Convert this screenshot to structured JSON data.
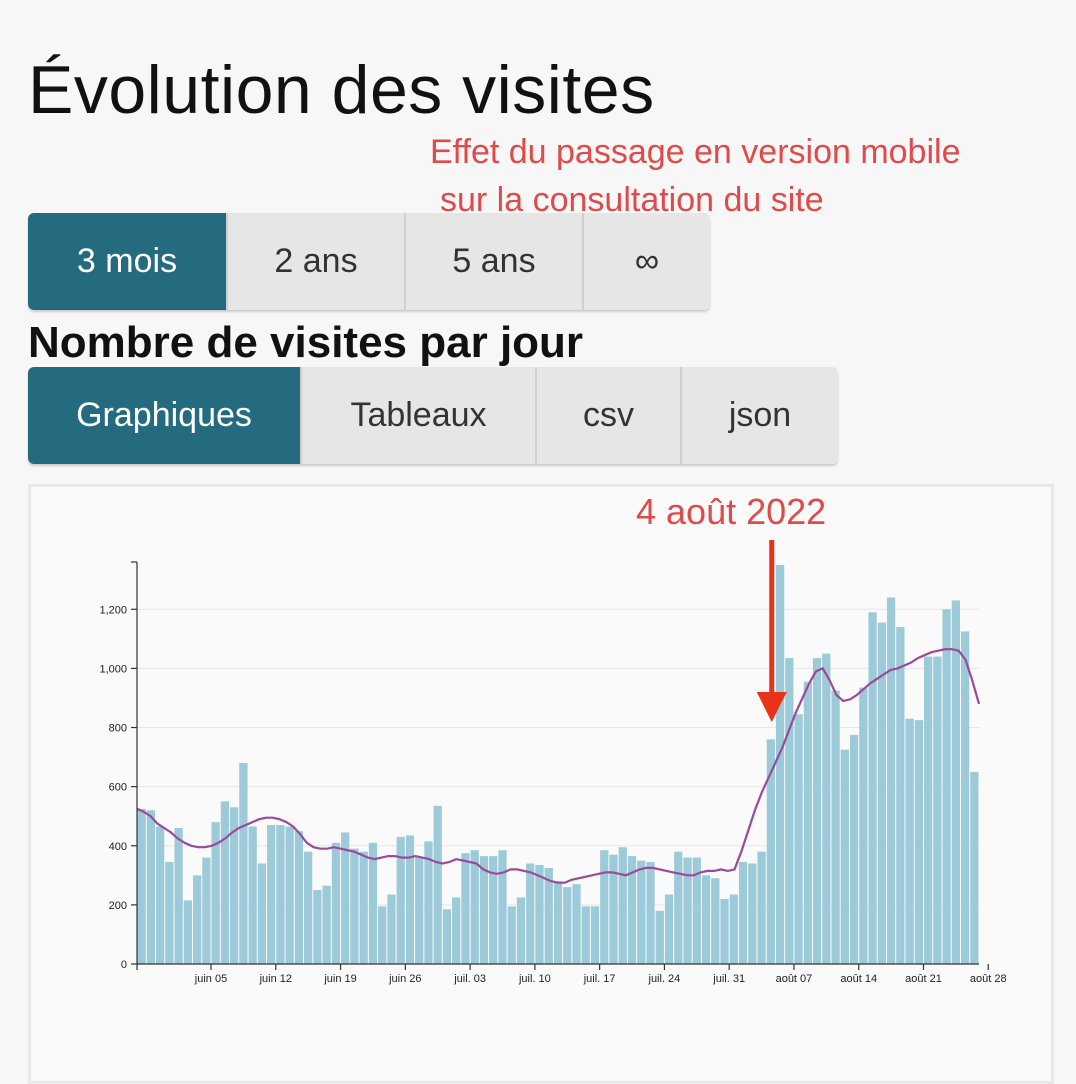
{
  "header": {
    "title": "Évolution des visites",
    "annotation_line1": "Effet du passage en version mobile",
    "annotation_line2": "sur la consultation du site"
  },
  "period_buttons": [
    {
      "label": "3 mois",
      "active": true
    },
    {
      "label": "2 ans",
      "active": false
    },
    {
      "label": "5 ans",
      "active": false
    },
    {
      "label": "∞",
      "active": false
    }
  ],
  "section_title": "Nombre de visites par jour",
  "view_buttons": [
    {
      "label": "Graphiques",
      "active": true
    },
    {
      "label": "Tableaux",
      "active": false
    },
    {
      "label": "csv",
      "active": false
    },
    {
      "label": "json",
      "active": false
    }
  ],
  "chart_annotation": "4 août 2022",
  "colors": {
    "accent": "#256b80",
    "bar": "#9ccad8",
    "trend": "#9a4a9a",
    "annotation": "#e04a4a",
    "arrow": "#e8321a"
  },
  "chart_data": {
    "type": "bar",
    "x_tick_labels": [
      "juin 05",
      "juin 12",
      "juin 19",
      "juin 26",
      "juil. 03",
      "juil. 10",
      "juil. 17",
      "juil. 24",
      "juil. 31",
      "août 07",
      "août 14",
      "août 21",
      "août 28"
    ],
    "y_ticks": [
      0,
      200,
      400,
      600,
      800,
      1000,
      1200
    ],
    "y_tick_labels": [
      "0",
      "200",
      "400",
      "600",
      "800",
      "1,000",
      "1,200"
    ],
    "ylim": [
      0,
      1360
    ],
    "grid": true,
    "annotated_date": "2022-08-04",
    "daily_visits": [
      525,
      520,
      465,
      345,
      460,
      215,
      300,
      360,
      480,
      550,
      530,
      680,
      465,
      340,
      470,
      470,
      465,
      450,
      380,
      250,
      265,
      410,
      445,
      390,
      380,
      410,
      195,
      235,
      430,
      435,
      360,
      415,
      535,
      185,
      225,
      375,
      385,
      365,
      365,
      385,
      195,
      225,
      340,
      335,
      325,
      280,
      260,
      270,
      195,
      195,
      385,
      370,
      395,
      365,
      350,
      345,
      180,
      235,
      380,
      360,
      360,
      300,
      290,
      220,
      235,
      345,
      340,
      380,
      760,
      1350,
      1035,
      845,
      955,
      1035,
      1050,
      925,
      725,
      775,
      935,
      1190,
      1155,
      1240,
      1140,
      830,
      825,
      1040,
      1040,
      1200,
      1230,
      1125,
      650
    ],
    "trend_line": [
      525,
      515,
      500,
      475,
      460,
      445,
      425,
      410,
      400,
      395,
      395,
      400,
      410,
      425,
      445,
      460,
      470,
      480,
      490,
      495,
      495,
      490,
      480,
      465,
      440,
      410,
      395,
      390,
      390,
      395,
      390,
      385,
      380,
      370,
      360,
      355,
      360,
      365,
      365,
      360,
      360,
      365,
      360,
      355,
      345,
      340,
      345,
      355,
      350,
      345,
      340,
      320,
      310,
      305,
      310,
      320,
      320,
      315,
      310,
      300,
      290,
      280,
      275,
      275,
      285,
      290,
      295,
      300,
      305,
      310,
      310,
      305,
      300,
      310,
      320,
      325,
      325,
      320,
      315,
      310,
      305,
      300,
      300,
      310,
      315,
      315,
      320,
      315,
      320,
      380,
      450,
      520,
      580,
      630,
      680,
      730,
      790,
      850,
      900,
      950,
      990,
      1000,
      960,
      910,
      890,
      895,
      910,
      930,
      950,
      965,
      980,
      995,
      1000,
      1010,
      1020,
      1035,
      1045,
      1055,
      1060,
      1065,
      1065,
      1060,
      1030,
      960,
      880
    ]
  }
}
